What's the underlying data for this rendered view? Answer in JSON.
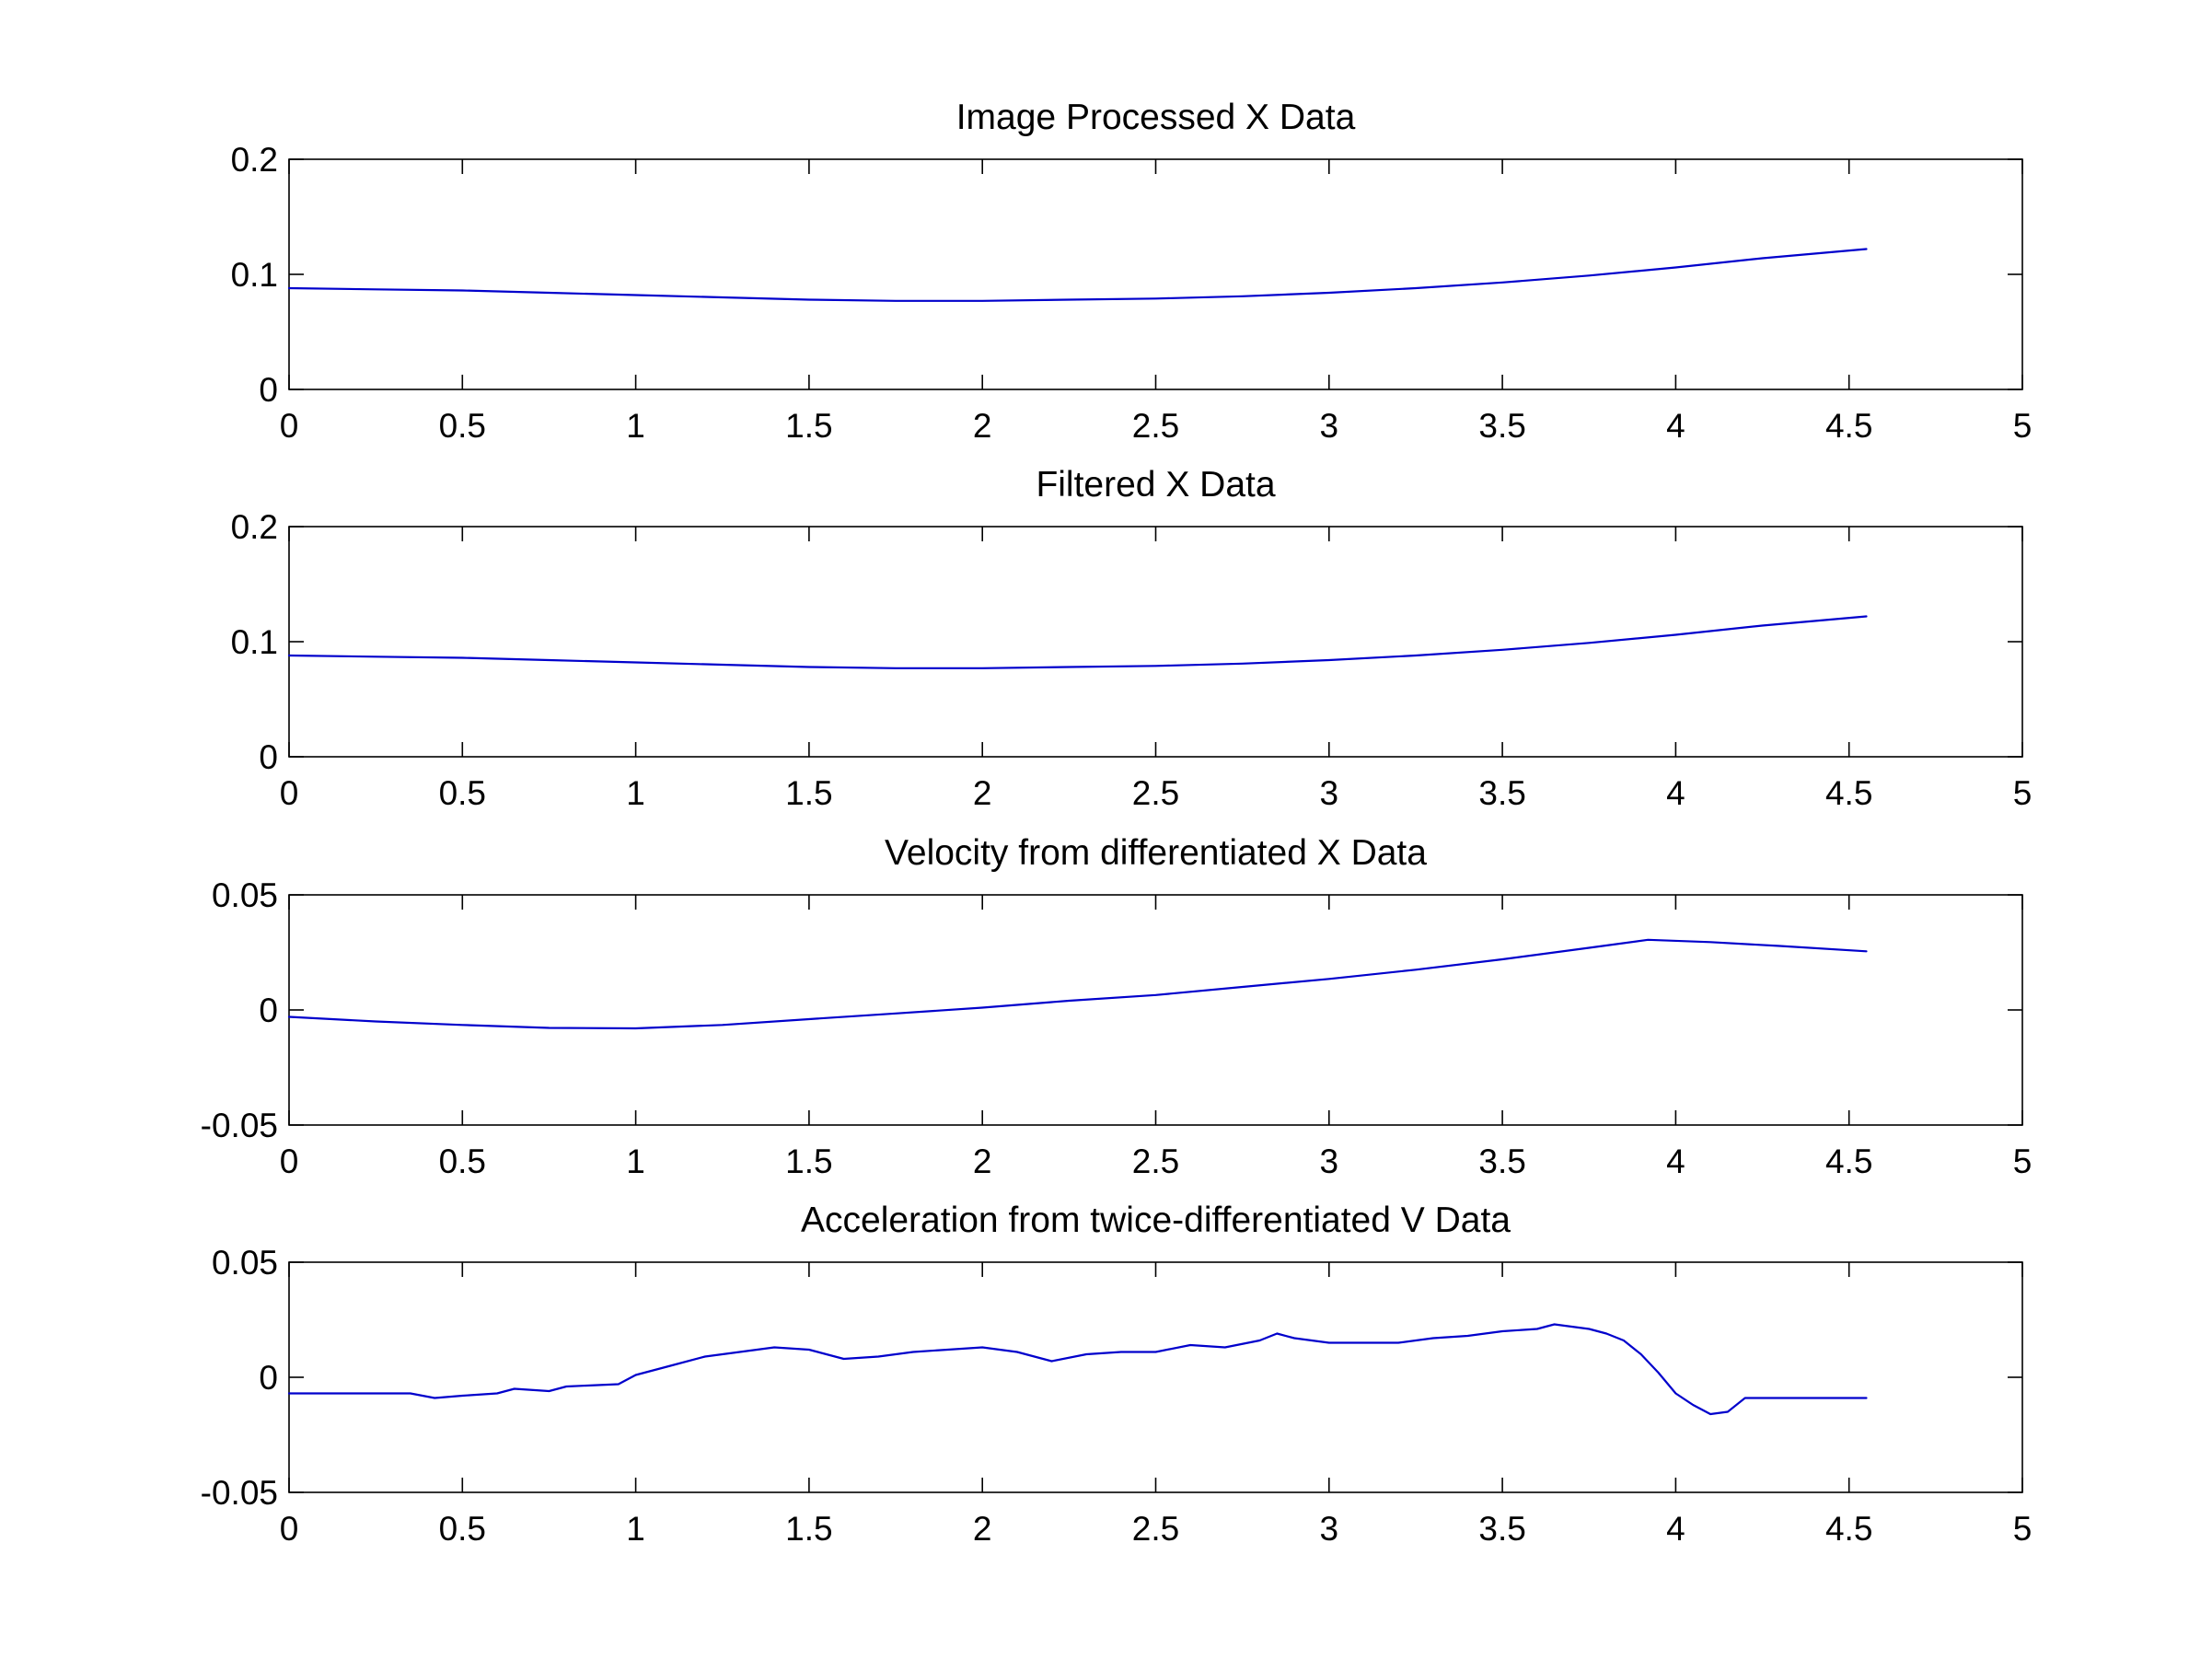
{
  "figure": {
    "line_color": "#0000cc",
    "background": "#ffffff"
  },
  "chart_data": [
    {
      "type": "line",
      "title": "Image Processed X Data",
      "xlabel": "",
      "ylabel": "",
      "xlim": [
        0,
        5
      ],
      "ylim": [
        0,
        0.2
      ],
      "xticks": [
        "0",
        "0.5",
        "1",
        "1.5",
        "2",
        "2.5",
        "3",
        "3.5",
        "4",
        "4.5",
        "5"
      ],
      "yticks": [
        "0",
        "0.1",
        "0.2"
      ],
      "grid": false,
      "series": [
        {
          "x": [
            0,
            0.25,
            0.5,
            0.75,
            1,
            1.25,
            1.5,
            1.75,
            2,
            2.25,
            2.5,
            2.75,
            3,
            3.25,
            3.5,
            3.75,
            4,
            4.25,
            4.55
          ],
          "y": [
            0.088,
            0.087,
            0.086,
            0.084,
            0.082,
            0.08,
            0.078,
            0.077,
            0.077,
            0.078,
            0.079,
            0.081,
            0.084,
            0.088,
            0.093,
            0.099,
            0.106,
            0.114,
            0.122
          ]
        }
      ]
    },
    {
      "type": "line",
      "title": "Filtered X Data",
      "xlabel": "",
      "ylabel": "",
      "xlim": [
        0,
        5
      ],
      "ylim": [
        0,
        0.2
      ],
      "xticks": [
        "0",
        "0.5",
        "1",
        "1.5",
        "2",
        "2.5",
        "3",
        "3.5",
        "4",
        "4.5",
        "5"
      ],
      "yticks": [
        "0",
        "0.1",
        "0.2"
      ],
      "grid": false,
      "series": [
        {
          "x": [
            0,
            0.25,
            0.5,
            0.75,
            1,
            1.25,
            1.5,
            1.75,
            2,
            2.25,
            2.5,
            2.75,
            3,
            3.25,
            3.5,
            3.75,
            4,
            4.25,
            4.55
          ],
          "y": [
            0.088,
            0.087,
            0.086,
            0.084,
            0.082,
            0.08,
            0.078,
            0.077,
            0.077,
            0.078,
            0.079,
            0.081,
            0.084,
            0.088,
            0.093,
            0.099,
            0.106,
            0.114,
            0.122
          ]
        }
      ]
    },
    {
      "type": "line",
      "title": "Velocity from differentiated X Data",
      "xlabel": "",
      "ylabel": "",
      "xlim": [
        0,
        5
      ],
      "ylim": [
        -0.05,
        0.05
      ],
      "xticks": [
        "0",
        "0.5",
        "1",
        "1.5",
        "2",
        "2.5",
        "3",
        "3.5",
        "4",
        "4.5",
        "5"
      ],
      "yticks": [
        "-0.05",
        "0",
        "0.05"
      ],
      "grid": false,
      "series": [
        {
          "x": [
            0,
            0.25,
            0.5,
            0.75,
            1,
            1.25,
            1.5,
            1.75,
            2,
            2.25,
            2.5,
            2.75,
            3,
            3.25,
            3.5,
            3.75,
            3.92,
            4.1,
            4.3,
            4.55
          ],
          "y": [
            -0.003,
            -0.005,
            -0.0065,
            -0.0078,
            -0.008,
            -0.0065,
            -0.004,
            -0.0015,
            0.001,
            0.004,
            0.0065,
            0.01,
            0.0135,
            0.0175,
            0.022,
            0.027,
            0.0305,
            0.0295,
            0.0278,
            0.0255
          ]
        }
      ]
    },
    {
      "type": "line",
      "title": "Acceleration from twice-differentiated V Data",
      "xlabel": "",
      "ylabel": "",
      "xlim": [
        0,
        5
      ],
      "ylim": [
        -0.05,
        0.05
      ],
      "xticks": [
        "0",
        "0.5",
        "1",
        "1.5",
        "2",
        "2.5",
        "3",
        "3.5",
        "4",
        "4.5",
        "5"
      ],
      "yticks": [
        "-0.05",
        "0",
        "0.05"
      ],
      "grid": false,
      "series": [
        {
          "x": [
            0,
            0.35,
            0.42,
            0.5,
            0.6,
            0.65,
            0.75,
            0.8,
            0.95,
            1.0,
            1.1,
            1.2,
            1.3,
            1.4,
            1.5,
            1.6,
            1.7,
            1.8,
            1.9,
            2.0,
            2.1,
            2.2,
            2.3,
            2.4,
            2.5,
            2.6,
            2.7,
            2.8,
            2.85,
            2.9,
            3.0,
            3.1,
            3.2,
            3.3,
            3.4,
            3.5,
            3.6,
            3.65,
            3.7,
            3.75,
            3.8,
            3.85,
            3.9,
            3.95,
            4.0,
            4.05,
            4.1,
            4.15,
            4.2,
            4.25,
            4.55
          ],
          "y": [
            -0.007,
            -0.007,
            -0.009,
            -0.008,
            -0.007,
            -0.005,
            -0.006,
            -0.004,
            -0.003,
            0.001,
            0.005,
            0.009,
            0.011,
            0.013,
            0.012,
            0.008,
            0.009,
            0.011,
            0.012,
            0.013,
            0.011,
            0.007,
            0.01,
            0.011,
            0.011,
            0.014,
            0.013,
            0.016,
            0.019,
            0.017,
            0.015,
            0.015,
            0.015,
            0.017,
            0.018,
            0.02,
            0.021,
            0.023,
            0.022,
            0.021,
            0.019,
            0.016,
            0.01,
            0.002,
            -0.007,
            -0.012,
            -0.016,
            -0.015,
            -0.009,
            -0.009,
            -0.009
          ]
        }
      ]
    }
  ]
}
